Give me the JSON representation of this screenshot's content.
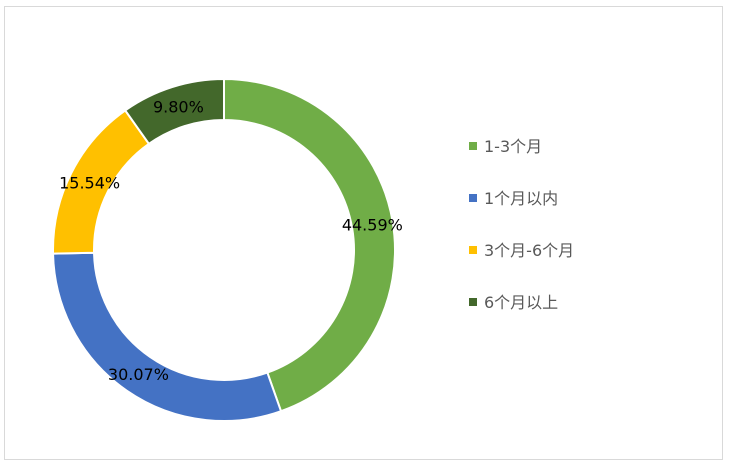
{
  "chart_data": {
    "type": "pie",
    "variant": "donut",
    "title": "",
    "start": "top",
    "direction": "clockwise",
    "legend_position": "right",
    "categories": [
      "1-3个月",
      "1个月以内",
      "3个月-6个月",
      "6个月以上"
    ],
    "values": [
      44.59,
      30.07,
      15.54,
      9.8
    ],
    "labels": [
      "44.59%",
      "30.07%",
      "15.54%",
      "9.80%"
    ],
    "colors": [
      "#70AD47",
      "#4472C4",
      "#FFC000",
      "#43682B"
    ]
  }
}
